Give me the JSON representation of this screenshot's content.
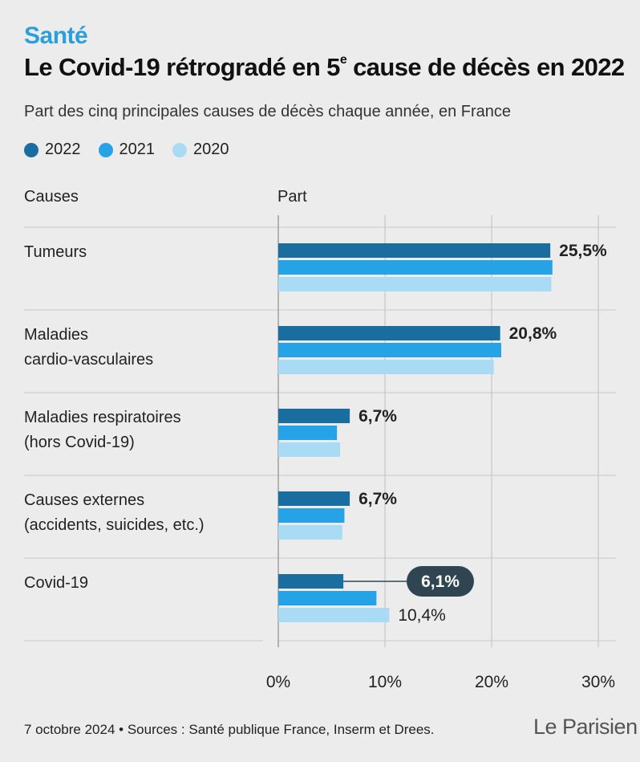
{
  "kicker": "Santé",
  "title_main": "Le Covid-19 rétrogradé en 5",
  "title_sup": "e",
  "title_end": " cause de décès en 2022",
  "subtitle": "Part des cinq principales causes de décès chaque année, en France",
  "legend": [
    {
      "label": "2022",
      "color": "#1a6e9f"
    },
    {
      "label": "2021",
      "color": "#26a3e6"
    },
    {
      "label": "2020",
      "color": "#a9dbf5"
    }
  ],
  "col_causes": "Causes",
  "col_part": "Part",
  "footer": "7 octobre 2024 • Sources : Santé publique France, Inserm et Drees.",
  "logo": "Le Parisien",
  "chart_data": {
    "type": "bar",
    "orientation": "horizontal",
    "categories": [
      "Tumeurs",
      "Maladies cardio-vasculaires",
      "Maladies respiratoires (hors Covid-19)",
      "Causes externes (accidents, suicides, etc.)",
      "Covid-19"
    ],
    "category_lines": [
      [
        "Tumeurs"
      ],
      [
        "Maladies",
        "cardio-vasculaires"
      ],
      [
        "Maladies respiratoires",
        "(hors Covid-19)"
      ],
      [
        "Causes externes",
        "(accidents, suicides, etc.)"
      ],
      [
        "Covid-19"
      ]
    ],
    "series": [
      {
        "name": "2022",
        "color": "#1a6e9f",
        "values": [
          25.5,
          20.8,
          6.7,
          6.7,
          6.1
        ]
      },
      {
        "name": "2021",
        "color": "#26a3e6",
        "values": [
          25.7,
          20.9,
          5.5,
          6.2,
          9.2
        ]
      },
      {
        "name": "2020",
        "color": "#a9dbf5",
        "values": [
          25.6,
          20.2,
          5.8,
          6.0,
          10.4
        ]
      }
    ],
    "data_labels": [
      {
        "category": 0,
        "series": 0,
        "text": "25,5%",
        "style": "bold"
      },
      {
        "category": 1,
        "series": 0,
        "text": "20,8%",
        "style": "bold"
      },
      {
        "category": 2,
        "series": 0,
        "text": "6,7%",
        "style": "bold"
      },
      {
        "category": 3,
        "series": 0,
        "text": "6,7%",
        "style": "bold"
      },
      {
        "category": 4,
        "series": 0,
        "text": "6,1%",
        "style": "callout"
      },
      {
        "category": 4,
        "series": 2,
        "text": "10,4%",
        "style": "plain"
      }
    ],
    "xlim": [
      0,
      30
    ],
    "xticks": [
      0,
      10,
      20,
      30
    ],
    "xtick_labels": [
      "0%",
      "10%",
      "20%",
      "30%"
    ],
    "callout_color": "#2f4652"
  }
}
